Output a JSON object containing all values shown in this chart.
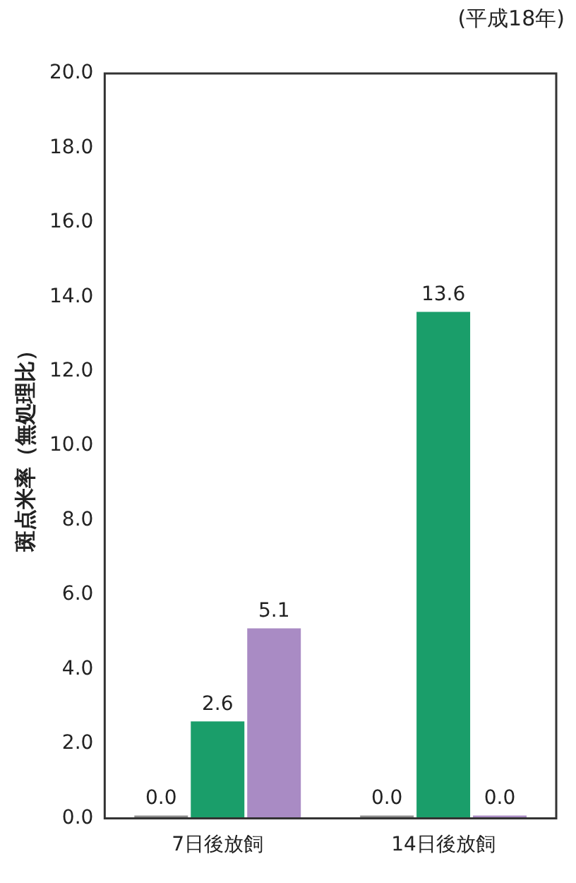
{
  "chart_data": {
    "type": "bar",
    "ylabel": "斑点米率（無処理比）",
    "annotations": [
      "(平成18年)"
    ],
    "categories": [
      "7日後放飼",
      "14日後放飼"
    ],
    "series": [
      {
        "color": "#8c8c8c",
        "values": [
          0.0,
          0.0
        ],
        "value_labels": [
          "0.0",
          "0.0"
        ]
      },
      {
        "color": "#1a9e6a",
        "values": [
          2.6,
          13.6
        ],
        "value_labels": [
          "2.6",
          "13.6"
        ]
      },
      {
        "color": "#a98bc4",
        "values": [
          5.1,
          0.0
        ],
        "value_labels": [
          "5.1",
          "0.0"
        ]
      }
    ],
    "ylim": [
      0,
      20
    ],
    "yticks": [
      {
        "value": 0,
        "label": "0.0"
      },
      {
        "value": 2,
        "label": "2.0"
      },
      {
        "value": 4,
        "label": "4.0"
      },
      {
        "value": 6,
        "label": "6.0"
      },
      {
        "value": 8,
        "label": "8.0"
      },
      {
        "value": 10,
        "label": "10.0"
      },
      {
        "value": 12,
        "label": "12.0"
      },
      {
        "value": 14,
        "label": "14.0"
      },
      {
        "value": 16,
        "label": "16.0"
      },
      {
        "value": 18,
        "label": "18.0"
      },
      {
        "value": 20,
        "label": "20.0"
      }
    ],
    "grid": false,
    "legend": false
  }
}
